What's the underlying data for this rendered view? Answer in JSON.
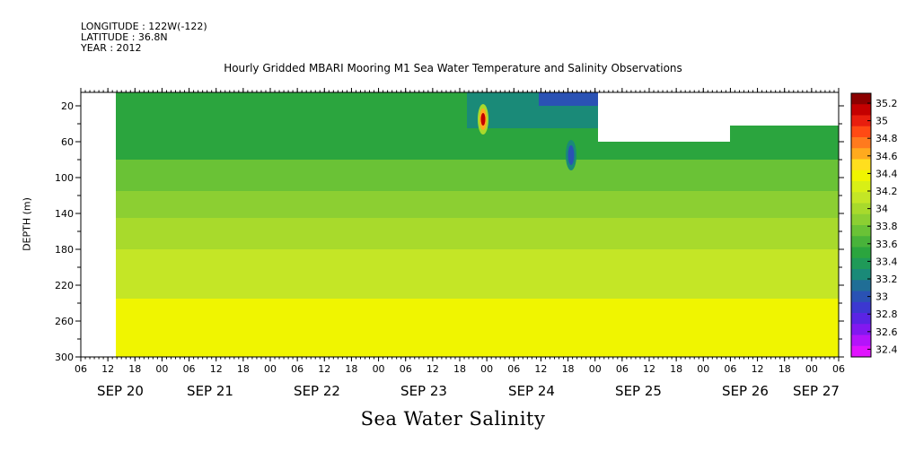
{
  "header": {
    "longitude": "LONGITUDE : 122W(-122)",
    "latitude": "LATITUDE : 36.8N",
    "year": "YEAR : 2012"
  },
  "chart_data": {
    "type": "heatmap",
    "title": "Hourly Gridded MBARI Mooring M1 Sea Water Temperature and Salinity Observations",
    "xlabel": "Sea Water Salinity",
    "ylabel": "DEPTH (m)",
    "y_ticks": [
      20,
      60,
      100,
      140,
      180,
      220,
      260,
      300
    ],
    "ylim": [
      300,
      5
    ],
    "x_hour_ticks": [
      "06",
      "12",
      "18",
      "00",
      "06",
      "12",
      "18",
      "00",
      "06",
      "12",
      "18",
      "00",
      "06",
      "12",
      "18",
      "00",
      "06",
      "12",
      "18",
      "00",
      "06",
      "12",
      "18",
      "00",
      "06",
      "12",
      "18",
      "00",
      "06"
    ],
    "x_day_labels": [
      "SEP 20",
      "SEP 21",
      "SEP 22",
      "SEP 23",
      "SEP 24",
      "SEP 25",
      "SEP 26",
      "SEP 27"
    ],
    "colorbar_labels": [
      "35.2",
      "35",
      "34.8",
      "34.6",
      "34.4",
      "34.2",
      "34",
      "33.8",
      "33.6",
      "33.4",
      "33.2",
      "33",
      "32.8",
      "32.6",
      "32.4"
    ],
    "colorbar_colors": [
      "#8b0000",
      "#c40000",
      "#e81e0e",
      "#ff4a14",
      "#ff7a1e",
      "#ffaa1e",
      "#ffdf1e",
      "#f0f500",
      "#d8ef16",
      "#c4e626",
      "#a8da2c",
      "#8ccf32",
      "#6ac236",
      "#48b33a",
      "#2ba53e",
      "#1f9a58",
      "#1a8a78",
      "#206e96",
      "#2a52b4",
      "#3c38d0",
      "#5a24e4",
      "#8218f0",
      "#b414fa",
      "#e014fe"
    ],
    "rows": [
      {
        "depth_range": [
          5,
          40
        ],
        "dominant_value": 33.5
      },
      {
        "depth_range": [
          40,
          100
        ],
        "dominant_value": 33.65
      },
      {
        "depth_range": [
          100,
          140
        ],
        "dominant_value": 33.85
      },
      {
        "depth_range": [
          140,
          200
        ],
        "dominant_value": 33.95
      },
      {
        "depth_range": [
          200,
          240
        ],
        "dominant_value": 34.05
      },
      {
        "depth_range": [
          240,
          300
        ],
        "dominant_value": 34.2
      }
    ],
    "features": [
      {
        "time": "SEP 24 00",
        "depth": 35,
        "value": 35.2
      },
      {
        "time": "SEP 24 22",
        "depth": 75,
        "value": 33.0
      }
    ]
  }
}
